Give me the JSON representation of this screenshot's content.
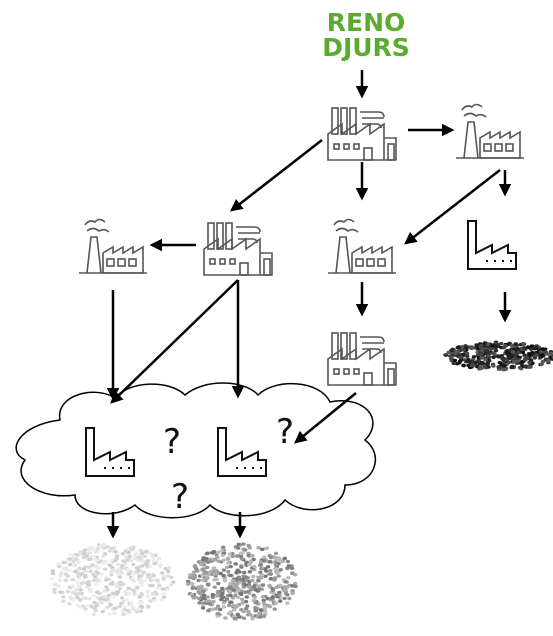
{
  "logo": {
    "line1": "RENO",
    "line2": "DJURS"
  },
  "question_marks": [
    "?",
    "?",
    "?"
  ]
}
